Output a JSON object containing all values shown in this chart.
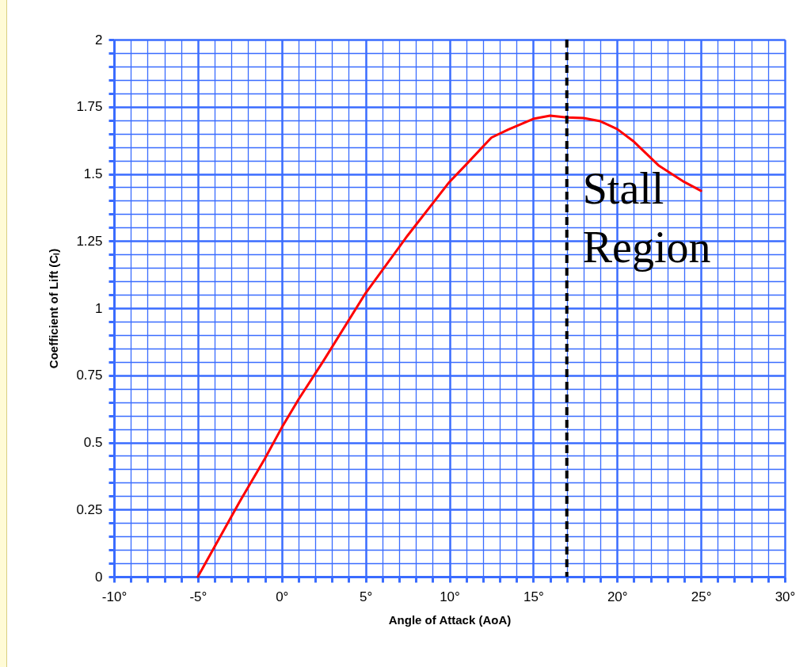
{
  "chart_data": {
    "type": "line",
    "xlabel": "Angle of Attack (AoA)",
    "ylabel": "Coefficient of Lift (Cₗ)",
    "x": [
      -5,
      -2.5,
      -1,
      0,
      1,
      2.5,
      5,
      7.5,
      10,
      11,
      12.5,
      13.5,
      15,
      16,
      17,
      18,
      19,
      20,
      21,
      22.5,
      24,
      25
    ],
    "series": [
      {
        "color": "#ff0000",
        "values": [
          0,
          0.28,
          0.44,
          0.555,
          0.66,
          0.805,
          1.056,
          1.27,
          1.47,
          1.535,
          1.635,
          1.665,
          1.705,
          1.717,
          1.71,
          1.708,
          1.696,
          1.667,
          1.62,
          1.53,
          1.47,
          1.437
        ]
      }
    ],
    "xlim": [
      -10,
      30
    ],
    "xticks": [
      {
        "value": -10,
        "label": "-10°"
      },
      {
        "value": -9,
        "label": null
      },
      {
        "value": -8,
        "label": null
      },
      {
        "value": -7,
        "label": null
      },
      {
        "value": -6,
        "label": null
      },
      {
        "value": -5,
        "label": "-5°"
      },
      {
        "value": -4,
        "label": null
      },
      {
        "value": -3,
        "label": null
      },
      {
        "value": -2,
        "label": null
      },
      {
        "value": -1,
        "label": null
      },
      {
        "value": 0,
        "label": "0°"
      },
      {
        "value": 1,
        "label": null
      },
      {
        "value": 2,
        "label": null
      },
      {
        "value": 3,
        "label": null
      },
      {
        "value": 4,
        "label": null
      },
      {
        "value": 5,
        "label": "5°"
      },
      {
        "value": 6,
        "label": null
      },
      {
        "value": 7,
        "label": null
      },
      {
        "value": 8,
        "label": null
      },
      {
        "value": 9,
        "label": null
      },
      {
        "value": 10,
        "label": "10°"
      },
      {
        "value": 11,
        "label": null
      },
      {
        "value": 12,
        "label": null
      },
      {
        "value": 13,
        "label": null
      },
      {
        "value": 14,
        "label": null
      },
      {
        "value": 15,
        "label": "15°"
      },
      {
        "value": 16,
        "label": null
      },
      {
        "value": 17,
        "label": null
      },
      {
        "value": 18,
        "label": null
      },
      {
        "value": 19,
        "label": null
      },
      {
        "value": 20,
        "label": "20°"
      },
      {
        "value": 21,
        "label": null
      },
      {
        "value": 22,
        "label": null
      },
      {
        "value": 23,
        "label": null
      },
      {
        "value": 24,
        "label": null
      },
      {
        "value": 25,
        "label": "25°"
      },
      {
        "value": 26,
        "label": null
      },
      {
        "value": 27,
        "label": null
      },
      {
        "value": 28,
        "label": null
      },
      {
        "value": 29,
        "label": null
      },
      {
        "value": 30,
        "label": "30°"
      }
    ],
    "ylim": [
      0,
      2
    ],
    "yticks": [
      0,
      {
        "value": 0.05,
        "label": null
      },
      {
        "value": 0.1,
        "label": null
      },
      {
        "value": 0.15,
        "label": null
      },
      {
        "value": 0.2,
        "label": null
      },
      0.25,
      {
        "value": 0.3,
        "label": null
      },
      {
        "value": 0.35,
        "label": null
      },
      {
        "value": 0.4,
        "label": null
      },
      {
        "value": 0.45,
        "label": null
      },
      0.5,
      {
        "value": 0.55,
        "label": null
      },
      {
        "value": 0.6,
        "label": null
      },
      {
        "value": 0.65,
        "label": null
      },
      {
        "value": 0.7,
        "label": null
      },
      0.75,
      {
        "value": 0.8,
        "label": null
      },
      {
        "value": 0.85,
        "label": null
      },
      {
        "value": 0.9,
        "label": null
      },
      {
        "value": 0.95,
        "label": null
      },
      1,
      {
        "value": 1.05,
        "label": null
      },
      {
        "value": 1.1,
        "label": null
      },
      {
        "value": 1.15,
        "label": null
      },
      {
        "value": 1.2,
        "label": null
      },
      1.25,
      {
        "value": 1.3,
        "label": null
      },
      {
        "value": 1.35,
        "label": null
      },
      {
        "value": 1.4,
        "label": null
      },
      {
        "value": 1.45,
        "label": null
      },
      1.5,
      {
        "value": 1.55,
        "label": null
      },
      {
        "value": 1.6,
        "label": null
      },
      {
        "value": 1.65,
        "label": null
      },
      {
        "value": 1.7,
        "label": null
      },
      1.75,
      {
        "value": 1.8,
        "label": null
      },
      {
        "value": 1.85,
        "label": null
      },
      {
        "value": 1.9,
        "label": null
      },
      {
        "value": 1.95,
        "label": null
      },
      2
    ],
    "grid": true,
    "ref_lines": [
      {
        "axis": "x",
        "value": 17,
        "label": "Stall Region",
        "color": "#000000",
        "line_style": "dashed"
      }
    ]
  }
}
